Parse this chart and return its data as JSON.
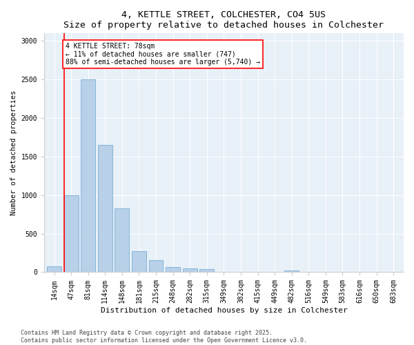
{
  "title1": "4, KETTLE STREET, COLCHESTER, CO4 5US",
  "title2": "Size of property relative to detached houses in Colchester",
  "xlabel": "Distribution of detached houses by size in Colchester",
  "ylabel": "Number of detached properties",
  "categories": [
    "14sqm",
    "47sqm",
    "81sqm",
    "114sqm",
    "148sqm",
    "181sqm",
    "215sqm",
    "248sqm",
    "282sqm",
    "315sqm",
    "349sqm",
    "382sqm",
    "415sqm",
    "449sqm",
    "482sqm",
    "516sqm",
    "549sqm",
    "583sqm",
    "616sqm",
    "650sqm",
    "683sqm"
  ],
  "values": [
    75,
    1000,
    2500,
    1650,
    830,
    270,
    155,
    65,
    45,
    38,
    0,
    0,
    0,
    0,
    25,
    0,
    0,
    0,
    0,
    0,
    0
  ],
  "bar_color": "#b8d0e8",
  "bar_edge_color": "#7aaed4",
  "vline_x_bar": 1,
  "vline_color": "red",
  "annotation_text": "4 KETTLE STREET: 78sqm\n← 11% of detached houses are smaller (747)\n88% of semi-detached houses are larger (5,740) →",
  "annotation_box_color": "white",
  "annotation_box_edge": "red",
  "footnote": "Contains HM Land Registry data © Crown copyright and database right 2025.\nContains public sector information licensed under the Open Government Licence v3.0.",
  "ylim": [
    0,
    3100
  ],
  "yticks": [
    0,
    500,
    1000,
    1500,
    2000,
    2500,
    3000
  ],
  "background_color": "#ffffff",
  "plot_bg_color": "#e8f0f8",
  "title1_fontsize": 9.5,
  "title2_fontsize": 8.5,
  "xlabel_fontsize": 8,
  "ylabel_fontsize": 7.5,
  "tick_fontsize": 7,
  "annotation_fontsize": 7,
  "footnote_fontsize": 6
}
